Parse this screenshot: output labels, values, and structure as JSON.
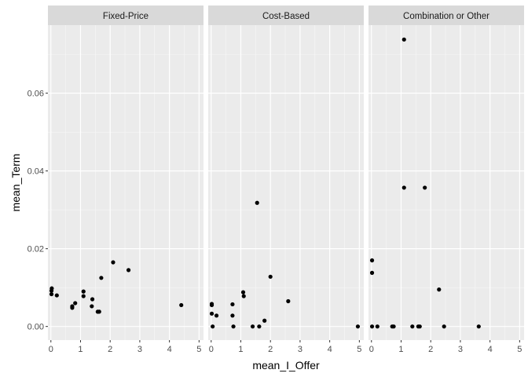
{
  "chart_data": {
    "type": "scatter",
    "xlabel": "mean_I_Offer",
    "ylabel": "mean_Term",
    "xlim": [
      -0.1,
      5.15
    ],
    "ylim": [
      -0.0035,
      0.0775
    ],
    "x_ticks": [
      0,
      1,
      2,
      3,
      4,
      5
    ],
    "x_tick_labels": [
      "0",
      "1",
      "2",
      "3",
      "4",
      "5"
    ],
    "y_ticks": [
      0.0,
      0.02,
      0.04,
      0.06
    ],
    "y_tick_labels": [
      "0.00",
      "0.02",
      "0.04",
      "0.06"
    ],
    "grid": true,
    "facets": [
      {
        "label": "Fixed-Price",
        "points": [
          {
            "x": 0.02,
            "y": 0.0083
          },
          {
            "x": 0.02,
            "y": 0.0092
          },
          {
            "x": 0.03,
            "y": 0.0098
          },
          {
            "x": 0.2,
            "y": 0.008
          },
          {
            "x": 0.72,
            "y": 0.0048
          },
          {
            "x": 0.72,
            "y": 0.0052
          },
          {
            "x": 0.82,
            "y": 0.006
          },
          {
            "x": 1.1,
            "y": 0.0078
          },
          {
            "x": 1.1,
            "y": 0.009
          },
          {
            "x": 1.38,
            "y": 0.0052
          },
          {
            "x": 1.4,
            "y": 0.007
          },
          {
            "x": 1.58,
            "y": 0.0038
          },
          {
            "x": 1.63,
            "y": 0.0038
          },
          {
            "x": 1.7,
            "y": 0.0125
          },
          {
            "x": 2.1,
            "y": 0.0165
          },
          {
            "x": 2.62,
            "y": 0.0145
          },
          {
            "x": 4.4,
            "y": 0.0055
          }
        ]
      },
      {
        "label": "Cost-Based",
        "points": [
          {
            "x": 0.02,
            "y": 0.0055
          },
          {
            "x": 0.02,
            "y": 0.0058
          },
          {
            "x": 0.02,
            "y": 0.0033
          },
          {
            "x": 0.05,
            "y": 0.0
          },
          {
            "x": 0.18,
            "y": 0.0028
          },
          {
            "x": 0.72,
            "y": 0.0057
          },
          {
            "x": 0.72,
            "y": 0.0028
          },
          {
            "x": 0.75,
            "y": 0.0
          },
          {
            "x": 1.08,
            "y": 0.0088
          },
          {
            "x": 1.1,
            "y": 0.0078
          },
          {
            "x": 1.4,
            "y": 0.0
          },
          {
            "x": 1.55,
            "y": 0.0318
          },
          {
            "x": 1.62,
            "y": 0.0
          },
          {
            "x": 1.8,
            "y": 0.0015
          },
          {
            "x": 2.0,
            "y": 0.0128
          },
          {
            "x": 2.6,
            "y": 0.0065
          },
          {
            "x": 4.95,
            "y": 0.0
          }
        ]
      },
      {
        "label": "Combination or Other",
        "points": [
          {
            "x": 0.02,
            "y": 0.0
          },
          {
            "x": 0.02,
            "y": 0.017
          },
          {
            "x": 0.02,
            "y": 0.0138
          },
          {
            "x": 0.2,
            "y": 0.0
          },
          {
            "x": 0.7,
            "y": 0.0
          },
          {
            "x": 0.75,
            "y": 0.0
          },
          {
            "x": 1.1,
            "y": 0.0738
          },
          {
            "x": 1.1,
            "y": 0.0357
          },
          {
            "x": 1.38,
            "y": 0.0
          },
          {
            "x": 1.58,
            "y": 0.0
          },
          {
            "x": 1.63,
            "y": 0.0
          },
          {
            "x": 1.8,
            "y": 0.0357
          },
          {
            "x": 2.28,
            "y": 0.0095
          },
          {
            "x": 2.45,
            "y": 0.0
          },
          {
            "x": 3.62,
            "y": 0.0
          }
        ]
      }
    ]
  }
}
